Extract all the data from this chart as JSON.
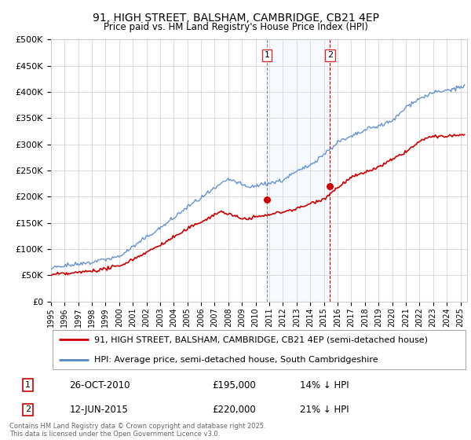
{
  "title": "91, HIGH STREET, BALSHAM, CAMBRIDGE, CB21 4EP",
  "subtitle": "Price paid vs. HM Land Registry's House Price Index (HPI)",
  "hpi_label": "HPI: Average price, semi-detached house, South Cambridgeshire",
  "property_label": "91, HIGH STREET, BALSHAM, CAMBRIDGE, CB21 4EP (semi-detached house)",
  "hpi_color": "#5588cc",
  "property_color": "#cc0000",
  "sale1_x": 2010.82,
  "sale1_y": 195000,
  "sale1_label": "1",
  "sale1_date": "26-OCT-2010",
  "sale1_price": "£195,000",
  "sale1_note": "14% ↓ HPI",
  "sale2_x": 2015.45,
  "sale2_y": 220000,
  "sale2_label": "2",
  "sale2_date": "12-JUN-2015",
  "sale2_price": "£220,000",
  "sale2_note": "21% ↓ HPI",
  "vline1_x": 2010.82,
  "vline2_x": 2015.45,
  "xmin": 1995,
  "xmax": 2025.5,
  "ymin": 0,
  "ymax": 500000,
  "yticks": [
    0,
    50000,
    100000,
    150000,
    200000,
    250000,
    300000,
    350000,
    400000,
    450000,
    500000
  ],
  "footer": "Contains HM Land Registry data © Crown copyright and database right 2025.\nThis data is licensed under the Open Government Licence v3.0.",
  "background_color": "#ffffff",
  "grid_color": "#cccccc",
  "shade_color": "#ddeeff"
}
